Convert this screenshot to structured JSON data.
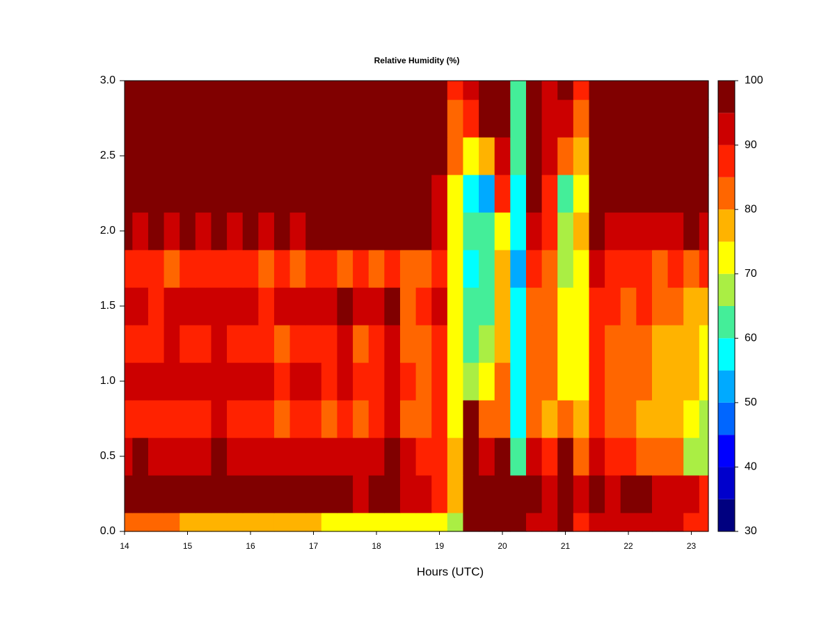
{
  "chart_data": {
    "type": "contour",
    "title": "Relative Humidity (%)",
    "x_label": "Hours (UTC)",
    "xlim": [
      14,
      23.27
    ],
    "ylim": [
      0,
      3
    ],
    "xticks": [
      14,
      15,
      16,
      17,
      18,
      19,
      20,
      21,
      22,
      23
    ],
    "yticks": [
      {
        "value": 0,
        "label": "0.0"
      },
      0.5,
      {
        "value": 1,
        "label": "1.0"
      },
      1.5,
      {
        "value": 2,
        "label": "2.0"
      },
      2.5,
      {
        "value": 3,
        "label": "3.0"
      }
    ],
    "levels": [
      30,
      35,
      40,
      45,
      50,
      55,
      60,
      65,
      70,
      75,
      80,
      85,
      90,
      95,
      100
    ],
    "colors": [
      "#000080",
      "#0000CC",
      "#0000FF",
      "#0066FF",
      "#00AAFF",
      "#00FFFF",
      "#44EE99",
      "#AAEE44",
      "#FFFF00",
      "#FFB300",
      "#FF6600",
      "#FF2200",
      "#CC0000",
      "#800000"
    ],
    "colorbar_ticks": [
      30,
      40,
      50,
      60,
      70,
      80,
      90,
      100
    ],
    "x": [
      14,
      14.25,
      14.5,
      14.75,
      15,
      15.25,
      15.5,
      15.75,
      16,
      16.25,
      16.5,
      16.75,
      17,
      17.25,
      17.5,
      17.75,
      18,
      18.25,
      18.5,
      18.75,
      19,
      19.25,
      19.5,
      19.75,
      20,
      20.25,
      20.5,
      20.75,
      21,
      21.25,
      21.5,
      21.75,
      22,
      22.25,
      22.5,
      22.75,
      23,
      23.25
    ],
    "y": [
      0,
      0.25,
      0.5,
      0.75,
      1,
      1.25,
      1.5,
      1.75,
      2,
      2.25,
      2.5,
      2.75,
      3
    ],
    "z": [
      [
        84,
        82,
        80,
        80,
        78,
        77,
        78,
        76,
        78,
        76,
        76,
        75,
        76,
        74,
        73,
        72,
        74,
        74,
        73,
        74,
        72,
        65,
        96,
        98,
        98,
        97,
        92,
        90,
        96,
        86,
        94,
        92,
        92,
        92,
        92,
        90,
        88,
        88
      ],
      [
        97,
        97,
        96,
        97,
        97,
        96,
        97,
        96,
        96,
        97,
        95,
        96,
        97,
        96,
        95,
        94,
        95,
        97,
        94,
        93,
        88,
        76,
        98,
        97,
        98,
        96,
        95,
        93,
        97,
        90,
        96,
        94,
        95,
        95,
        94,
        92,
        90,
        88
      ],
      [
        92,
        96,
        93,
        92,
        94,
        93,
        95,
        92,
        94,
        93,
        92,
        91,
        94,
        92,
        92,
        90,
        92,
        96,
        90,
        88,
        88,
        76,
        97,
        93,
        95,
        62,
        90,
        86,
        96,
        80,
        92,
        88,
        86,
        84,
        82,
        80,
        68,
        66
      ],
      [
        88,
        86,
        88,
        87,
        88,
        86,
        90,
        85,
        86,
        87,
        84,
        86,
        88,
        84,
        86,
        82,
        85,
        90,
        82,
        82,
        85,
        74,
        95,
        82,
        80,
        58,
        82,
        78,
        80,
        76,
        86,
        82,
        80,
        78,
        78,
        76,
        70,
        68
      ],
      [
        91,
        90,
        92,
        94,
        92,
        90,
        93,
        90,
        91,
        92,
        88,
        90,
        92,
        89,
        92,
        87,
        88,
        92,
        85,
        84,
        88,
        72,
        68,
        72,
        80,
        56,
        84,
        80,
        74,
        74,
        88,
        84,
        82,
        82,
        78,
        78,
        76,
        74
      ],
      [
        87,
        88,
        86,
        90,
        86,
        88,
        91,
        87,
        88,
        86,
        84,
        86,
        88,
        87,
        90,
        84,
        86,
        92,
        82,
        80,
        86,
        70,
        62,
        66,
        76,
        55,
        82,
        80,
        70,
        72,
        86,
        84,
        82,
        80,
        78,
        76,
        76,
        74
      ],
      [
        90,
        92,
        88,
        93,
        90,
        91,
        93,
        90,
        92,
        89,
        91,
        90,
        94,
        92,
        95,
        90,
        92,
        96,
        84,
        86,
        90,
        72,
        60,
        64,
        78,
        55,
        84,
        82,
        70,
        72,
        88,
        88,
        84,
        86,
        82,
        80,
        78,
        78
      ],
      [
        88,
        86,
        88,
        84,
        88,
        86,
        88,
        85,
        87,
        84,
        86,
        82,
        86,
        88,
        84,
        86,
        84,
        86,
        82,
        84,
        88,
        74,
        58,
        63,
        76,
        52,
        86,
        84,
        68,
        72,
        90,
        88,
        86,
        88,
        84,
        86,
        83,
        85
      ],
      [
        96,
        94,
        95,
        93,
        95,
        94,
        96,
        94,
        95,
        94,
        97,
        94,
        95,
        96,
        98,
        97,
        97,
        96,
        96,
        96,
        94,
        72,
        60,
        62,
        72,
        56,
        92,
        86,
        66,
        75,
        95,
        93,
        92,
        92,
        93,
        94,
        96,
        92
      ],
      [
        98,
        98,
        98,
        98,
        98,
        98,
        98,
        98,
        98,
        98,
        98,
        98,
        98,
        98,
        98,
        98,
        98,
        98,
        98,
        98,
        94,
        72,
        55,
        52,
        85,
        58,
        98,
        88,
        60,
        72,
        95,
        98,
        98,
        98,
        98,
        98,
        98,
        98
      ],
      [
        98,
        98,
        98,
        98,
        98,
        98,
        98,
        98,
        98,
        98,
        98,
        98,
        98,
        98,
        98,
        98,
        98,
        98,
        98,
        98,
        96,
        80,
        70,
        75,
        93,
        60,
        98,
        90,
        80,
        78,
        96,
        98,
        98,
        98,
        98,
        98,
        98,
        98
      ],
      [
        98,
        98,
        98,
        98,
        98,
        98,
        98,
        98,
        98,
        98,
        98,
        98,
        98,
        98,
        98,
        98,
        98,
        98,
        98,
        98,
        97,
        84,
        88,
        96,
        98,
        60,
        98,
        90,
        92,
        84,
        98,
        98,
        98,
        98,
        98,
        98,
        98,
        98
      ],
      [
        98,
        98,
        98,
        98,
        98,
        98,
        98,
        98,
        98,
        98,
        98,
        98,
        98,
        98,
        98,
        98,
        98,
        98,
        98,
        98,
        98,
        86,
        90,
        97,
        98,
        62,
        98,
        92,
        97,
        85,
        98,
        98,
        98,
        98,
        98,
        98,
        97,
        96
      ]
    ]
  }
}
